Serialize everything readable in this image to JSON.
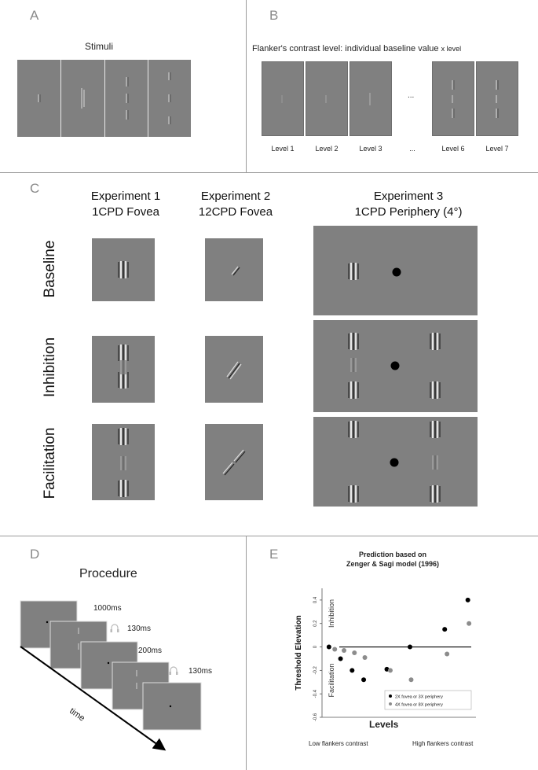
{
  "panels": {
    "a": {
      "letter": "A",
      "title": "Stimuli"
    },
    "b": {
      "letter": "B",
      "title": "Flanker's contrast level: individual baseline value",
      "title_suffix": "x level",
      "ellipsis": "...",
      "levels": [
        "Level 1",
        "Level 2",
        "Level 3",
        "...",
        "Level 6",
        "Level 7"
      ]
    },
    "c": {
      "letter": "C",
      "experiments": [
        {
          "line1": "Experiment 1",
          "line2": "1CPD Fovea"
        },
        {
          "line1": "Experiment 2",
          "line2": "12CPD Fovea"
        },
        {
          "line1": "Experiment 3",
          "line2": "1CPD Periphery (4°)"
        }
      ],
      "rows": [
        "Baseline",
        "Inhibition",
        "Facilitation"
      ]
    },
    "d": {
      "letter": "D",
      "title": "Procedure",
      "durations": [
        "1000ms",
        "130ms",
        "200ms",
        "130ms"
      ],
      "time_label": "time"
    },
    "e": {
      "letter": "E",
      "title_line1": "Prediction based on",
      "title_line2": "Zenger & Sagi model (1996)",
      "footer_left": "Low flankers contrast",
      "footer_right": "High flankers contrast"
    }
  },
  "chart_data": {
    "type": "scatter",
    "title": "Prediction based on Zenger & Sagi model (1996)",
    "xlabel": "Levels",
    "ylabel": "Threshold Elevation",
    "ylim": [
      -0.6,
      0.5
    ],
    "yticks": [
      0.4,
      0.2,
      0.0,
      -0.2,
      -0.4,
      -0.6
    ],
    "y_tick_labels": [
      "0.4",
      "0.2",
      "0",
      "-0.2",
      "-0.4",
      "-0.6"
    ],
    "region_labels": {
      "upper": "Inhibition",
      "lower": "Facilitation"
    },
    "legend_position": "bottom-right",
    "series": [
      {
        "name": "2X fovea or 3X periphery",
        "color": "#000000",
        "x": [
          1,
          2,
          3,
          4,
          6,
          8,
          11,
          13
        ],
        "y": [
          0.0,
          -0.1,
          -0.2,
          -0.28,
          -0.19,
          0.0,
          0.15,
          0.4
        ]
      },
      {
        "name": "4X fovea or 8X periphery",
        "color": "#8c8c8c",
        "x": [
          1.5,
          2.3,
          3.2,
          4.1,
          6.3,
          8.1,
          11.2,
          13.1
        ],
        "y": [
          -0.02,
          -0.03,
          -0.05,
          -0.09,
          -0.2,
          -0.28,
          -0.06,
          0.2
        ]
      }
    ]
  }
}
